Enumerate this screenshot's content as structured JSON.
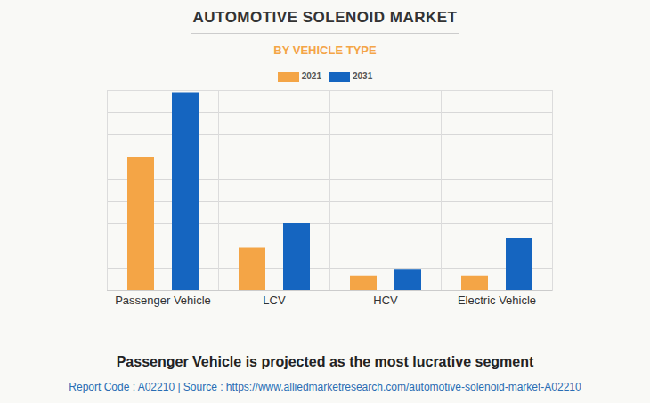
{
  "chart_data": {
    "type": "bar",
    "title": "AUTOMOTIVE SOLENOID MARKET",
    "subtitle": "BY VEHICLE TYPE",
    "caption": "Passenger Vehicle is projected as the most lucrative segment",
    "source": "Report Code : A02210  |  Source : https://www.alliedmarketresearch.com/automotive-solenoid-market-A02210",
    "categories": [
      "Passenger Vehicle",
      "LCV",
      "HCV",
      "Electric Vehicle"
    ],
    "series": [
      {
        "name": "2021",
        "color": "#f4a546",
        "values": [
          6.0,
          1.9,
          0.65,
          0.65
        ]
      },
      {
        "name": "2031",
        "color": "#1565c0",
        "values": [
          8.9,
          3.0,
          0.95,
          2.35
        ]
      }
    ],
    "ylim": [
      0,
      9
    ],
    "yticks": [
      0,
      1,
      2,
      3,
      4,
      5,
      6,
      7,
      8,
      9
    ],
    "grid": true,
    "tick_labels": "x",
    "legend": "top"
  }
}
